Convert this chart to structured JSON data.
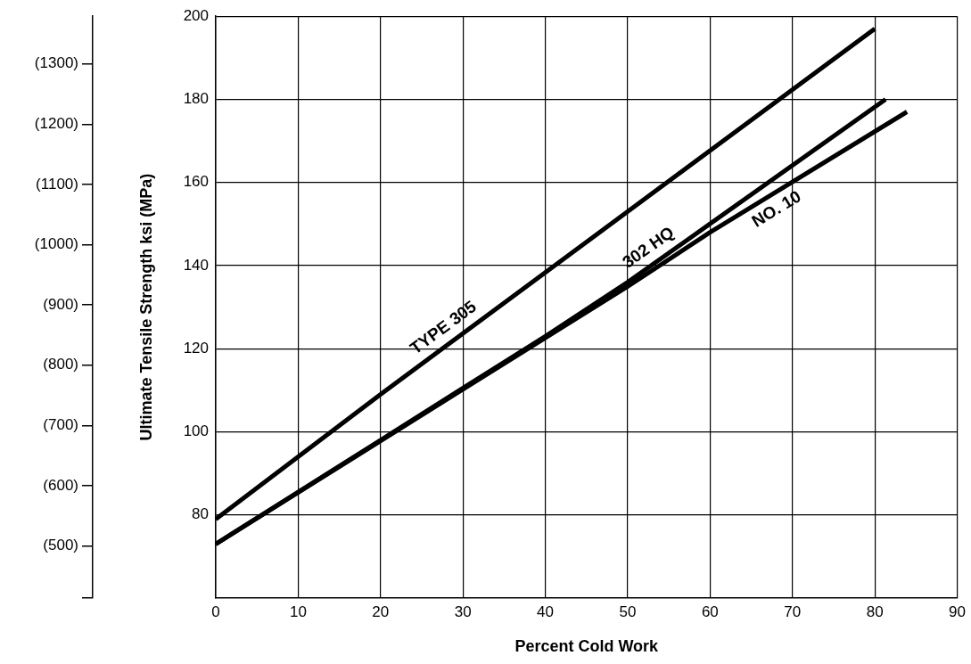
{
  "chart_data": {
    "type": "line",
    "xlabel": "Percent Cold Work",
    "ylabel": "Ultimate Tensile Strength ksi (MPa)",
    "xlim": [
      0,
      90
    ],
    "xticks": [
      0,
      10,
      20,
      30,
      40,
      50,
      60,
      70,
      80,
      90
    ],
    "ylim": [
      60,
      200
    ],
    "yticks": [
      80,
      100,
      120,
      140,
      160,
      180,
      200
    ],
    "y2lim": [
      413.7,
      1379
    ],
    "y2ticks": [
      {
        "value": 413.7,
        "label": null
      },
      {
        "value": 500,
        "label": "(500)"
      },
      {
        "value": 600,
        "label": "(600)"
      },
      {
        "value": 700,
        "label": "(700)"
      },
      {
        "value": 800,
        "label": "(800)"
      },
      {
        "value": 900,
        "label": "(900)"
      },
      {
        "value": 1000,
        "label": "(1000)"
      },
      {
        "value": 1100,
        "label": "(1100)"
      },
      {
        "value": 1200,
        "label": "(1200)"
      },
      {
        "value": 1300,
        "label": "(1300)"
      }
    ],
    "grid": true,
    "legend": false,
    "marker": "none",
    "line_style": "solid",
    "series": [
      {
        "name": "TYPE 305",
        "color": "#000000",
        "x": [
          0,
          20,
          80
        ],
        "values": [
          79,
          109,
          197
        ]
      },
      {
        "name": "302 HQ",
        "color": "#000000",
        "x": [
          0,
          20,
          40,
          50,
          81.3
        ],
        "values": [
          73,
          98,
          123,
          136,
          180
        ]
      },
      {
        "name": "NO. 10",
        "color": "#000000",
        "x": [
          0,
          50,
          60,
          83.9
        ],
        "values": [
          73,
          135,
          148,
          177
        ]
      }
    ]
  }
}
